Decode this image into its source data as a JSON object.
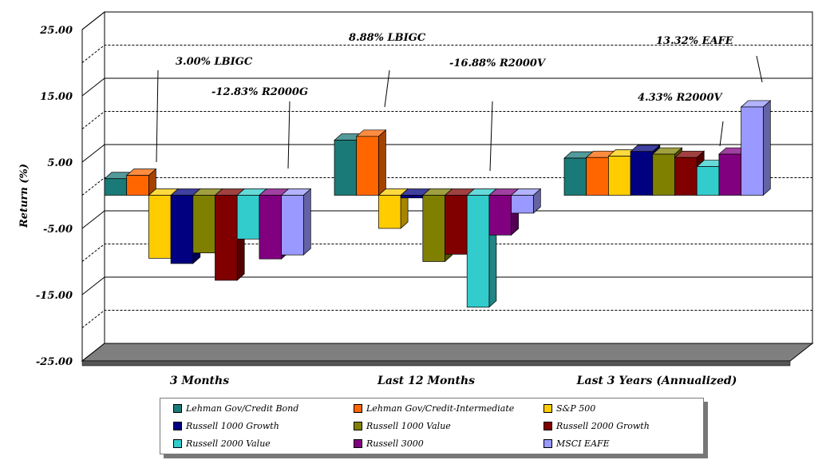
{
  "chart_data": {
    "type": "bar",
    "ylabel": "Return (%)",
    "ylim": [
      -25,
      25
    ],
    "yticks": [
      25,
      15,
      5,
      -5,
      -15,
      -25
    ],
    "ytick_labels": [
      "25.00",
      "15.00",
      "5.00",
      "-5.00",
      "-15.00",
      "-25.00"
    ],
    "categories": [
      "3 Months",
      "Last 12 Months",
      "Last 3 Years (Annualized)"
    ],
    "series": [
      {
        "name": "Lehman Gov/Credit Bond",
        "color": "#1a7a78",
        "values": [
          2.5,
          8.3,
          5.6
        ]
      },
      {
        "name": "Lehman Gov/Credit-Intermediate",
        "color": "#ff6600",
        "values": [
          3.0,
          8.88,
          5.7
        ]
      },
      {
        "name": "S&P 500",
        "color": "#ffcc00",
        "values": [
          -9.5,
          -5.0,
          5.9
        ]
      },
      {
        "name": "Russell 1000 Growth",
        "color": "#000080",
        "values": [
          -10.3,
          -0.4,
          6.6
        ]
      },
      {
        "name": "Russell 1000 Value",
        "color": "#808000",
        "values": [
          -8.7,
          -10.0,
          6.2
        ]
      },
      {
        "name": "Russell 2000 Growth",
        "color": "#800000",
        "values": [
          -12.83,
          -8.9,
          5.7
        ]
      },
      {
        "name": "Russell 2000 Value",
        "color": "#33cccc",
        "values": [
          -6.6,
          -16.88,
          4.33
        ]
      },
      {
        "name": "Russell 3000",
        "color": "#800080",
        "values": [
          -9.6,
          -6.0,
          6.2
        ]
      },
      {
        "name": "MSCI EAFE",
        "color": "#9999ff",
        "values": [
          -9.0,
          -2.7,
          13.32
        ]
      }
    ],
    "annotations": [
      "3.00% LBIGC",
      "-12.83% R2000G",
      "8.88% LBIGC",
      "-16.88% R2000V",
      "13.32% EAFE",
      "4.33% R2000V"
    ],
    "legend_position": "bottom",
    "grid": true
  }
}
